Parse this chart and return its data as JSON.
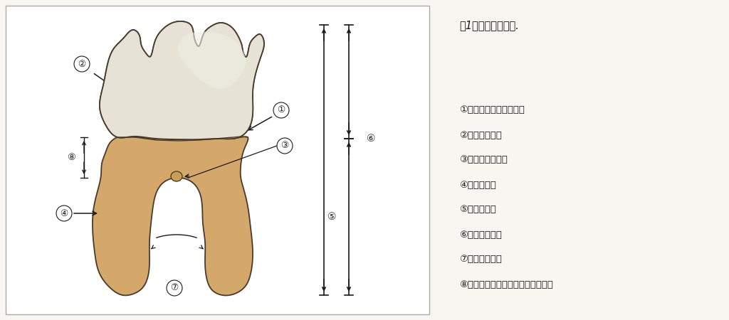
{
  "title": "図1　各部位の名称.",
  "bg_color": "#f7f6f1",
  "border_color": "#bbbbbb",
  "legend_items": [
    "①セメント－エナメル境",
    "②エナメル突起",
    "③エナメルパール",
    "④歯根の形態",
    "⑤歯根の長さ",
    "⑥歯冠－歯根比",
    "⑦歯根の離開度",
    "⑧根幹（ルート・トランク）の長さ"
  ],
  "crown_fill": "#e6e2d5",
  "crown_edge": "#4a3a2a",
  "root_fill": "#d4a86a",
  "root_edge": "#4a3a2a",
  "line_color": "#1a1a1a",
  "label_color": "#1a1a1a",
  "bg_left": "#f7f6f1"
}
